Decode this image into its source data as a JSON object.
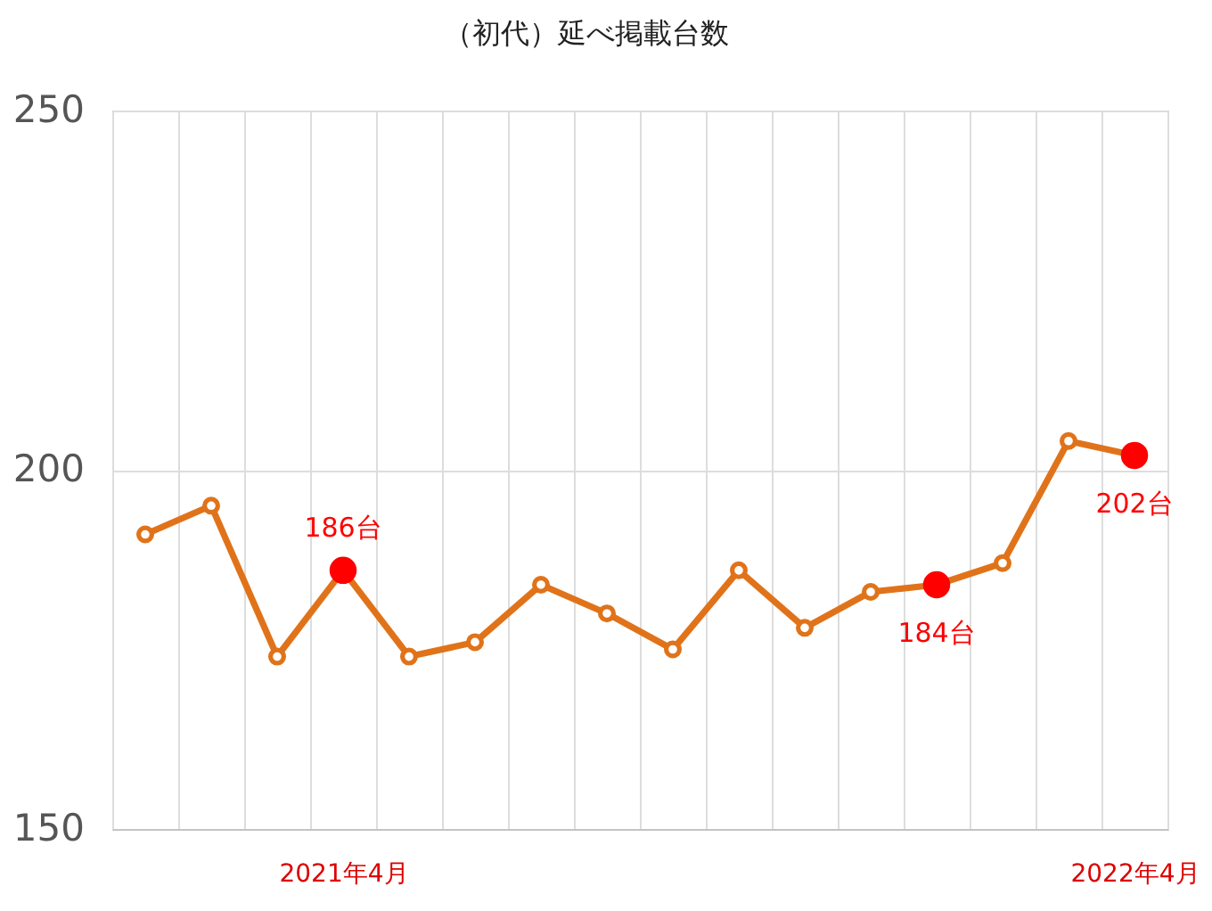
{
  "chart_data": {
    "type": "line",
    "title": "（初代）延べ掲載台数",
    "categories": [
      null,
      null,
      null,
      "2021年4月",
      null,
      null,
      null,
      null,
      null,
      null,
      null,
      null,
      null,
      null,
      null,
      "2022年4月"
    ],
    "series": [
      {
        "color": "#e0731a",
        "colors": [
          "#e0731a",
          "#e0731a",
          "#e0731a",
          "#ff0000",
          "#e0731a",
          "#e0731a",
          "#e0731a",
          "#e0731a",
          "#e0731a",
          "#e0731a",
          "#e0731a",
          "#e0731a",
          "#ff0000",
          "#e0731a",
          "#e0731a",
          "#ff0000"
        ],
        "values": [
          191,
          195,
          174,
          186,
          174,
          176,
          184,
          180,
          175,
          186,
          178,
          183,
          184,
          187,
          204,
          202
        ],
        "value_labels": [
          null,
          null,
          null,
          "186台",
          null,
          null,
          null,
          null,
          null,
          null,
          null,
          null,
          "184台",
          null,
          null,
          "202台"
        ]
      }
    ],
    "ylim": [
      150,
      250
    ],
    "yticks": [
      150,
      200,
      250
    ],
    "grid": true,
    "marker": "circle",
    "line_style": "solid"
  }
}
